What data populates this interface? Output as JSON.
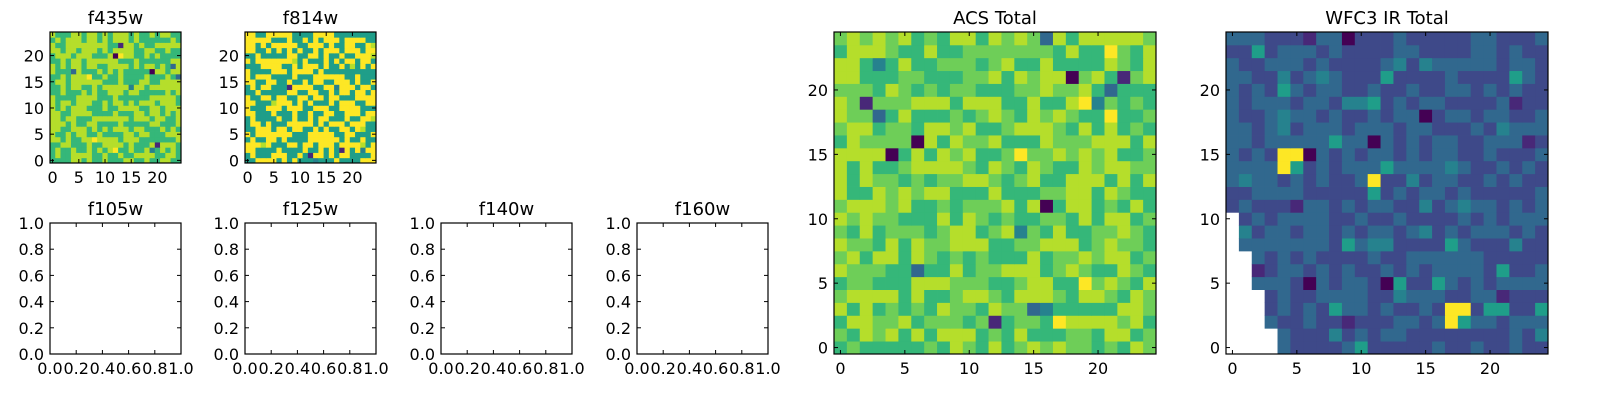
{
  "palette": [
    "#440154",
    "#482878",
    "#3e4989",
    "#31688e",
    "#26828e",
    "#1f9e89",
    "#35b779",
    "#6ece58",
    "#b5de2b",
    "#fde725"
  ],
  "chart_data": [
    {
      "type": "heatmap",
      "title": "f435w",
      "grid": false,
      "xlim": [
        -0.5,
        24.5
      ],
      "ylim": [
        -0.5,
        24.5
      ],
      "origin": "lower",
      "xticks": [
        "0",
        "5",
        "10",
        "15",
        "20"
      ],
      "yticks": [
        "0",
        "5",
        "10",
        "15",
        "20"
      ],
      "tones": [
        6,
        8
      ],
      "cell_rows": 25,
      "cell_cols": 25,
      "seed": 11,
      "variability": "high",
      "dark_cells": 9,
      "bright_cells": 8
    },
    {
      "type": "heatmap",
      "title": "f814w",
      "grid": false,
      "xlim": [
        -0.5,
        24.5
      ],
      "ylim": [
        -0.5,
        24.5
      ],
      "origin": "lower",
      "xticks": [
        "0",
        "5",
        "10",
        "15",
        "20"
      ],
      "yticks": [
        "0",
        "5",
        "10",
        "15",
        "20"
      ],
      "tones": [
        5,
        9
      ],
      "cell_rows": 25,
      "cell_cols": 25,
      "seed": 23,
      "variability": "high",
      "dark_cells": 6,
      "bright_cells": 30
    },
    {
      "type": "line",
      "title": "f105w",
      "series": [],
      "xlim": [
        0.0,
        1.0
      ],
      "ylim": [
        0.0,
        1.0
      ],
      "xticks": [
        "0.0",
        "0.2",
        "0.4",
        "0.6",
        "0.8",
        "1.0"
      ],
      "yticks": [
        "0.0",
        "0.2",
        "0.4",
        "0.6",
        "0.8",
        "1.0"
      ]
    },
    {
      "type": "line",
      "title": "f125w",
      "series": [],
      "xlim": [
        0.0,
        1.0
      ],
      "ylim": [
        0.0,
        1.0
      ],
      "xticks": [
        "0.0",
        "0.2",
        "0.4",
        "0.6",
        "0.8",
        "1.0"
      ],
      "yticks": [
        "0.0",
        "0.2",
        "0.4",
        "0.6",
        "0.8",
        "1.0"
      ]
    },
    {
      "type": "line",
      "title": "f140w",
      "series": [],
      "xlim": [
        0.0,
        1.0
      ],
      "ylim": [
        0.0,
        1.0
      ],
      "xticks": [
        "0.0",
        "0.2",
        "0.4",
        "0.6",
        "0.8",
        "1.0"
      ],
      "yticks": [
        "0.0",
        "0.2",
        "0.4",
        "0.6",
        "0.8",
        "1.0"
      ]
    },
    {
      "type": "line",
      "title": "f160w",
      "series": [],
      "xlim": [
        0.0,
        1.0
      ],
      "ylim": [
        0.0,
        1.0
      ],
      "xticks": [
        "0.0",
        "0.2",
        "0.4",
        "0.6",
        "0.8",
        "1.0"
      ],
      "yticks": [
        "0.0",
        "0.2",
        "0.4",
        "0.6",
        "0.8",
        "1.0"
      ]
    },
    {
      "type": "heatmap",
      "title": "ACS Total",
      "grid": false,
      "xlim": [
        -0.5,
        24.5
      ],
      "ylim": [
        -0.5,
        24.5
      ],
      "origin": "lower",
      "xticks": [
        "0",
        "5",
        "10",
        "15",
        "20"
      ],
      "yticks": [
        "0",
        "5",
        "10",
        "15",
        "20"
      ],
      "tones": [
        6,
        7,
        8
      ],
      "cell_rows": 25,
      "cell_cols": 25,
      "seed": 37,
      "variability": "medium",
      "dark_cells": 16,
      "bright_cells": 10
    },
    {
      "type": "heatmap",
      "title": "WFC3 IR Total",
      "grid": false,
      "xlim": [
        -0.5,
        24.5
      ],
      "ylim": [
        -0.5,
        24.5
      ],
      "origin": "lower",
      "xticks": [
        "0",
        "5",
        "10",
        "15",
        "20"
      ],
      "yticks": [
        "0",
        "5",
        "10",
        "15",
        "20"
      ],
      "tones": [
        2,
        3
      ],
      "cell_rows": 25,
      "cell_cols": 25,
      "seed": 53,
      "variability": "low",
      "dark_cells": 22,
      "bright_cells": 0,
      "teal_cells": 40,
      "bright_blocks": [
        [
          4,
          14,
          2,
          2
        ],
        [
          11,
          12,
          1,
          2
        ],
        [
          17,
          2,
          2,
          2
        ]
      ],
      "blank_region": {
        "description": "lower-left wedge has no data",
        "rows_without_data": [
          [
            0,
            4
          ],
          [
            1,
            4
          ],
          [
            2,
            3
          ],
          [
            3,
            3
          ],
          [
            4,
            3
          ],
          [
            5,
            2
          ],
          [
            6,
            2
          ],
          [
            7,
            2
          ],
          [
            8,
            1
          ],
          [
            9,
            1
          ],
          [
            10,
            1
          ],
          [
            11,
            0
          ],
          [
            12,
            0
          ],
          [
            13,
            0
          ]
        ]
      }
    }
  ]
}
